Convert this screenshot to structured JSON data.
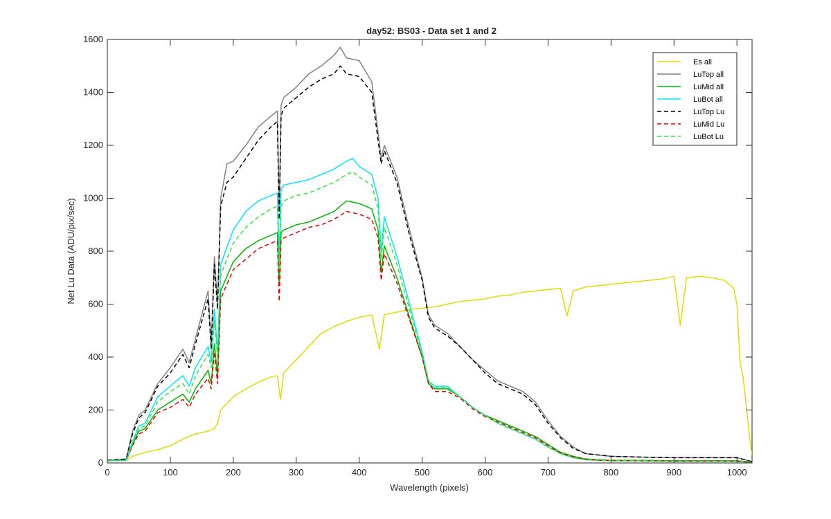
{
  "chart_data": {
    "type": "line",
    "title": "day52: BS03 - Data set 1 and 2",
    "xlabel": "Wavelength (pixels)",
    "ylabel": "Net Lu Data (ADU/pix/sec)",
    "xlim": [
      0,
      1024
    ],
    "ylim": [
      0,
      1600
    ],
    "xticks": [
      0,
      100,
      200,
      300,
      400,
      500,
      600,
      700,
      800,
      900,
      1000
    ],
    "yticks": [
      0,
      200,
      400,
      600,
      800,
      1000,
      1200,
      1400,
      1600
    ],
    "grid": false,
    "legend_position": "top-right",
    "series": [
      {
        "name": "Es  all",
        "color": "#e6d800",
        "dash": "solid",
        "x": [
          0,
          30,
          40,
          60,
          80,
          100,
          120,
          140,
          160,
          170,
          175,
          180,
          200,
          220,
          240,
          260,
          270,
          275,
          280,
          300,
          320,
          340,
          360,
          380,
          400,
          420,
          432,
          440,
          460,
          480,
          500,
          520,
          540,
          560,
          580,
          600,
          620,
          640,
          660,
          680,
          700,
          720,
          730,
          740,
          760,
          780,
          800,
          820,
          840,
          860,
          880,
          900,
          910,
          920,
          940,
          960,
          980,
          995,
          1000,
          1005,
          1010,
          1020,
          1024
        ],
        "y": [
          8,
          10,
          25,
          40,
          50,
          65,
          90,
          110,
          120,
          130,
          150,
          200,
          250,
          280,
          305,
          325,
          330,
          240,
          340,
          390,
          440,
          490,
          515,
          535,
          550,
          560,
          430,
          560,
          570,
          580,
          585,
          590,
          600,
          610,
          615,
          620,
          630,
          635,
          645,
          650,
          655,
          660,
          555,
          650,
          665,
          670,
          675,
          680,
          685,
          690,
          695,
          705,
          520,
          700,
          705,
          700,
          690,
          660,
          600,
          380,
          320,
          100,
          30
        ]
      },
      {
        "name": "LuTop  all",
        "color": "#808080",
        "dash": "solid",
        "x": [
          0,
          30,
          40,
          50,
          60,
          80,
          100,
          120,
          130,
          140,
          160,
          165,
          170,
          175,
          180,
          190,
          200,
          220,
          240,
          260,
          270,
          273,
          276,
          280,
          300,
          320,
          340,
          360,
          370,
          380,
          400,
          420,
          430,
          435,
          440,
          460,
          480,
          500,
          510,
          520,
          540,
          560,
          580,
          600,
          620,
          640,
          660,
          680,
          700,
          720,
          740,
          760,
          780,
          800,
          850,
          900,
          950,
          1000,
          1024
        ],
        "y": [
          10,
          15,
          120,
          180,
          200,
          300,
          360,
          430,
          380,
          470,
          650,
          450,
          780,
          600,
          1000,
          1130,
          1140,
          1200,
          1270,
          1310,
          1330,
          950,
          1350,
          1380,
          1420,
          1470,
          1500,
          1540,
          1570,
          1530,
          1520,
          1440,
          1250,
          1150,
          1200,
          1080,
          880,
          700,
          560,
          520,
          490,
          440,
          390,
          350,
          310,
          290,
          270,
          230,
          160,
          100,
          60,
          35,
          30,
          25,
          22,
          20,
          20,
          20,
          5
        ]
      },
      {
        "name": "LuMid  all",
        "color": "#00b400",
        "dash": "solid",
        "x": [
          0,
          30,
          40,
          50,
          60,
          80,
          100,
          120,
          130,
          140,
          160,
          165,
          170,
          175,
          180,
          200,
          220,
          240,
          260,
          270,
          273,
          276,
          280,
          300,
          320,
          340,
          360,
          380,
          400,
          420,
          430,
          435,
          440,
          460,
          480,
          500,
          510,
          520,
          540,
          560,
          580,
          600,
          620,
          640,
          660,
          680,
          700,
          720,
          740,
          760,
          780,
          800,
          850,
          900,
          950,
          1000,
          1024
        ],
        "y": [
          8,
          10,
          70,
          120,
          130,
          200,
          230,
          260,
          230,
          280,
          350,
          300,
          450,
          330,
          650,
          760,
          810,
          840,
          860,
          870,
          680,
          870,
          880,
          900,
          910,
          930,
          950,
          990,
          980,
          960,
          880,
          720,
          820,
          700,
          550,
          400,
          300,
          280,
          280,
          250,
          210,
          180,
          160,
          140,
          120,
          100,
          70,
          40,
          25,
          15,
          12,
          10,
          10,
          8,
          8,
          8,
          3
        ]
      },
      {
        "name": "LuBot  all",
        "color": "#00e5ff",
        "dash": "solid",
        "x": [
          0,
          30,
          40,
          50,
          60,
          80,
          100,
          120,
          130,
          140,
          160,
          165,
          170,
          175,
          180,
          200,
          220,
          240,
          260,
          270,
          273,
          276,
          280,
          300,
          320,
          340,
          360,
          380,
          390,
          400,
          420,
          430,
          435,
          440,
          460,
          480,
          500,
          510,
          520,
          540,
          560,
          580,
          600,
          620,
          640,
          660,
          680,
          700,
          720,
          740,
          760,
          780,
          800,
          850,
          900,
          950,
          1000,
          1024
        ],
        "y": [
          8,
          10,
          80,
          140,
          150,
          250,
          290,
          330,
          290,
          360,
          440,
          380,
          580,
          420,
          750,
          880,
          950,
          990,
          1010,
          1020,
          780,
          1030,
          1050,
          1060,
          1070,
          1090,
          1110,
          1140,
          1150,
          1120,
          1090,
          1000,
          800,
          930,
          780,
          600,
          420,
          310,
          290,
          290,
          250,
          210,
          180,
          150,
          130,
          110,
          90,
          60,
          35,
          20,
          12,
          10,
          8,
          8,
          6,
          6,
          6,
          2
        ]
      },
      {
        "name": "LuTop  Lu",
        "color": "#000000",
        "dash": "dashed",
        "x": [
          0,
          30,
          40,
          50,
          60,
          80,
          100,
          120,
          130,
          140,
          160,
          165,
          170,
          175,
          180,
          190,
          200,
          220,
          240,
          260,
          270,
          273,
          276,
          280,
          300,
          320,
          340,
          360,
          370,
          380,
          400,
          420,
          430,
          435,
          440,
          460,
          480,
          500,
          510,
          520,
          540,
          560,
          580,
          600,
          620,
          640,
          660,
          680,
          700,
          720,
          740,
          760,
          780,
          800,
          850,
          900,
          950,
          1000,
          1024
        ],
        "y": [
          10,
          15,
          110,
          170,
          190,
          290,
          340,
          410,
          360,
          450,
          620,
          430,
          750,
          580,
          970,
          1060,
          1080,
          1150,
          1220,
          1270,
          1290,
          920,
          1310,
          1340,
          1380,
          1420,
          1450,
          1470,
          1500,
          1470,
          1460,
          1400,
          1220,
          1130,
          1180,
          1060,
          860,
          690,
          550,
          510,
          480,
          440,
          390,
          340,
          300,
          280,
          260,
          220,
          150,
          95,
          55,
          35,
          30,
          25,
          22,
          20,
          20,
          20,
          5
        ]
      },
      {
        "name": "LuMid  Lu",
        "color": "#e60000",
        "dash": "dashed",
        "x": [
          0,
          30,
          40,
          50,
          60,
          80,
          100,
          120,
          130,
          140,
          160,
          165,
          170,
          175,
          180,
          200,
          220,
          240,
          260,
          270,
          273,
          276,
          280,
          300,
          320,
          340,
          360,
          380,
          400,
          420,
          430,
          435,
          440,
          460,
          480,
          500,
          510,
          520,
          540,
          560,
          580,
          600,
          620,
          640,
          660,
          680,
          700,
          720,
          740,
          760,
          780,
          800,
          850,
          900,
          950,
          1000,
          1024
        ],
        "y": [
          8,
          10,
          65,
          110,
          120,
          190,
          210,
          240,
          210,
          260,
          320,
          280,
          420,
          300,
          620,
          730,
          770,
          810,
          830,
          840,
          610,
          840,
          850,
          870,
          890,
          900,
          920,
          950,
          940,
          920,
          850,
          690,
          790,
          680,
          540,
          400,
          300,
          270,
          270,
          245,
          205,
          175,
          155,
          135,
          115,
          95,
          65,
          38,
          22,
          14,
          10,
          9,
          8,
          7,
          7,
          7,
          2
        ]
      },
      {
        "name": "LuBot  Lu",
        "color": "#33e633",
        "dash": "dashed",
        "x": [
          0,
          30,
          40,
          50,
          60,
          80,
          100,
          120,
          130,
          140,
          160,
          165,
          170,
          175,
          180,
          200,
          220,
          240,
          260,
          270,
          273,
          276,
          280,
          300,
          320,
          340,
          360,
          380,
          390,
          400,
          420,
          430,
          435,
          440,
          460,
          480,
          500,
          510,
          520,
          540,
          560,
          580,
          600,
          620,
          640,
          660,
          680,
          700,
          720,
          740,
          760,
          780,
          800,
          850,
          900,
          950,
          1000,
          1024
        ],
        "y": [
          8,
          10,
          75,
          130,
          140,
          230,
          270,
          300,
          260,
          330,
          410,
          360,
          540,
          400,
          710,
          830,
          890,
          930,
          960,
          970,
          730,
          970,
          990,
          1010,
          1020,
          1040,
          1060,
          1090,
          1100,
          1080,
          1050,
          960,
          770,
          890,
          750,
          580,
          410,
          310,
          285,
          285,
          250,
          210,
          180,
          150,
          130,
          110,
          90,
          60,
          35,
          20,
          12,
          10,
          8,
          8,
          6,
          6,
          6,
          2
        ]
      }
    ]
  }
}
